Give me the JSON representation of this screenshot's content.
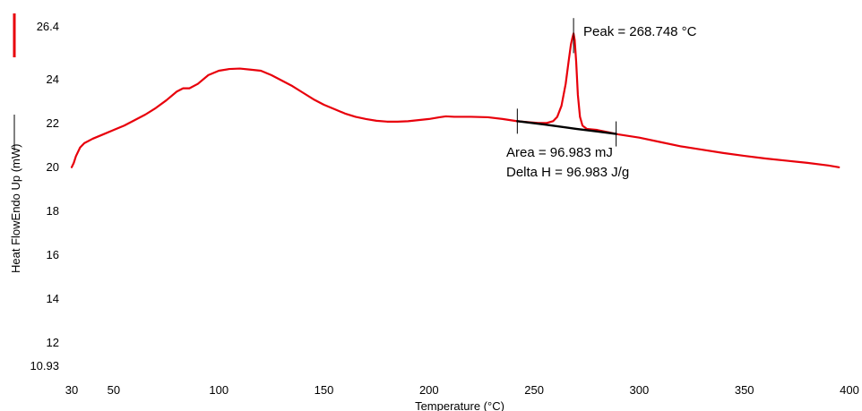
{
  "chart_data": {
    "type": "line",
    "xlabel": "Temperature (°C)",
    "ylabel": "Heat FlowEndo Up (mW)",
    "xlim": [
      30,
      400
    ],
    "ylim": [
      10.93,
      26.4
    ],
    "x_ticks": [
      {
        "value": 30,
        "label": "30"
      },
      {
        "value": 50,
        "label": "50"
      },
      {
        "value": 100,
        "label": "100"
      },
      {
        "value": 150,
        "label": "150"
      },
      {
        "value": 200,
        "label": "200"
      },
      {
        "value": 250,
        "label": "250"
      },
      {
        "value": 300,
        "label": "300"
      },
      {
        "value": 350,
        "label": "350"
      },
      {
        "value": 400,
        "label": "400"
      }
    ],
    "y_ticks": [
      {
        "value": 10.93,
        "label": "10.93"
      },
      {
        "value": 12,
        "label": "12"
      },
      {
        "value": 14,
        "label": "14"
      },
      {
        "value": 16,
        "label": "16"
      },
      {
        "value": 18,
        "label": "18"
      },
      {
        "value": 20,
        "label": "20"
      },
      {
        "value": 22,
        "label": "22"
      },
      {
        "value": 24,
        "label": "24"
      },
      {
        "value": 26.4,
        "label": "26.4"
      }
    ],
    "grid": false,
    "series": [
      {
        "color": "#e8000b",
        "points": [
          [
            30,
            20.0
          ],
          [
            31,
            20.2
          ],
          [
            32,
            20.5
          ],
          [
            34,
            20.9
          ],
          [
            36,
            21.1
          ],
          [
            40,
            21.3
          ],
          [
            45,
            21.5
          ],
          [
            50,
            21.7
          ],
          [
            55,
            21.9
          ],
          [
            60,
            22.15
          ],
          [
            65,
            22.4
          ],
          [
            70,
            22.7
          ],
          [
            75,
            23.05
          ],
          [
            80,
            23.45
          ],
          [
            83,
            23.6
          ],
          [
            86,
            23.6
          ],
          [
            90,
            23.8
          ],
          [
            95,
            24.2
          ],
          [
            100,
            24.4
          ],
          [
            105,
            24.48
          ],
          [
            110,
            24.5
          ],
          [
            115,
            24.45
          ],
          [
            120,
            24.4
          ],
          [
            125,
            24.2
          ],
          [
            130,
            23.95
          ],
          [
            135,
            23.7
          ],
          [
            140,
            23.4
          ],
          [
            145,
            23.1
          ],
          [
            150,
            22.85
          ],
          [
            155,
            22.65
          ],
          [
            160,
            22.45
          ],
          [
            165,
            22.3
          ],
          [
            170,
            22.2
          ],
          [
            175,
            22.12
          ],
          [
            180,
            22.08
          ],
          [
            185,
            22.08
          ],
          [
            190,
            22.1
          ],
          [
            195,
            22.15
          ],
          [
            200,
            22.2
          ],
          [
            205,
            22.28
          ],
          [
            208,
            22.32
          ],
          [
            212,
            22.3
          ],
          [
            220,
            22.3
          ],
          [
            228,
            22.28
          ],
          [
            235,
            22.2
          ],
          [
            242,
            22.1
          ],
          [
            248,
            22.05
          ],
          [
            252,
            22.02
          ],
          [
            256,
            22.02
          ],
          [
            259,
            22.1
          ],
          [
            261,
            22.3
          ],
          [
            263,
            22.8
          ],
          [
            265,
            23.8
          ],
          [
            266.5,
            24.9
          ],
          [
            267.5,
            25.6
          ],
          [
            268.2,
            25.9
          ],
          [
            268.75,
            26.1
          ],
          [
            269.3,
            25.8
          ],
          [
            270,
            24.8
          ],
          [
            270.8,
            23.3
          ],
          [
            271.8,
            22.3
          ],
          [
            273,
            21.9
          ],
          [
            275,
            21.75
          ],
          [
            280,
            21.7
          ],
          [
            285,
            21.6
          ],
          [
            290,
            21.5
          ],
          [
            300,
            21.35
          ],
          [
            310,
            21.15
          ],
          [
            320,
            20.95
          ],
          [
            330,
            20.8
          ],
          [
            340,
            20.65
          ],
          [
            350,
            20.52
          ],
          [
            360,
            20.4
          ],
          [
            370,
            20.3
          ],
          [
            380,
            20.2
          ],
          [
            390,
            20.08
          ],
          [
            395,
            20.0
          ]
        ]
      },
      {
        "color": "#000000",
        "points": [
          [
            242,
            22.1
          ],
          [
            255,
            21.95
          ],
          [
            270,
            21.75
          ],
          [
            280,
            21.63
          ],
          [
            289,
            21.52
          ]
        ]
      }
    ],
    "integration_limits": [
      {
        "x": 242,
        "y": 22.1
      },
      {
        "x": 289,
        "y": 21.52
      }
    ],
    "peak_marker": {
      "x": 268.75,
      "y_from": 25.2,
      "y_to": 26.8
    },
    "annotations": {
      "peak": "Peak = 268.748 °C",
      "area": "Area = 96.983 mJ",
      "delta_h": "Delta H = 96.983 J/g"
    },
    "legend_colors": {
      "heat_flow": "#e8000b",
      "axis_key": "#000000"
    }
  }
}
